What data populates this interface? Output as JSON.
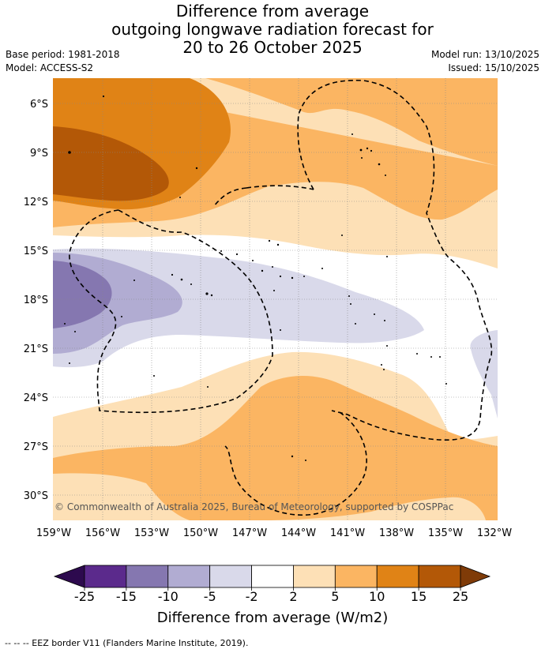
{
  "title": {
    "line1": "Difference from average",
    "line2": "outgoing longwave radiation forecast for",
    "line3": "20 to 26 October 2025"
  },
  "meta": {
    "base_period": "Base period: 1981-2018",
    "model": "Model: ACCESS-S2",
    "model_run": "Model run: 13/10/2025",
    "issued": "Issued: 15/10/2025"
  },
  "map": {
    "lat_labels": [
      "6°S",
      "9°S",
      "12°S",
      "15°S",
      "18°S",
      "21°S",
      "24°S",
      "27°S",
      "30°S"
    ],
    "lon_labels": [
      "159°W",
      "156°W",
      "153°W",
      "150°W",
      "147°W",
      "144°W",
      "141°W",
      "138°W",
      "135°W",
      "132°W"
    ],
    "copyright": "© Commonwealth of Australia 2025, Bureau of Meteorology, supported by COSPPac"
  },
  "legend": {
    "bins": [
      {
        "color": "#2d0a4e"
      },
      {
        "color": "#5b2a8c"
      },
      {
        "color": "#8577b0"
      },
      {
        "color": "#b1acd2"
      },
      {
        "color": "#d9d9ea"
      },
      {
        "color": "#ffffff"
      },
      {
        "color": "#fde0b6"
      },
      {
        "color": "#fbb562"
      },
      {
        "color": "#e08316"
      },
      {
        "color": "#b35807"
      },
      {
        "color": "#7f3b08"
      }
    ],
    "ticks": [
      "-25",
      "-15",
      "-10",
      "-5",
      "-2",
      "2",
      "5",
      "10",
      "15",
      "25"
    ],
    "label": "Difference from average (W/m2)"
  },
  "footnote": "--  --  -- EEZ border V11 (Flanders Marine Institute, 2019)."
}
